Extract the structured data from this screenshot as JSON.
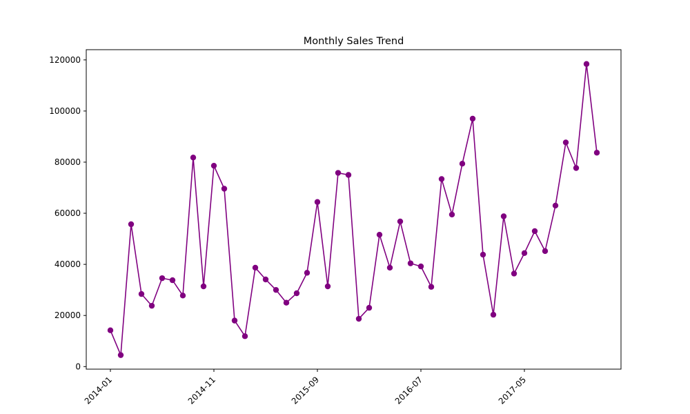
{
  "chart_data": {
    "type": "line",
    "title": "Monthly Sales Trend",
    "xlabel": "",
    "ylabel": "",
    "x_tick_labels": [
      "2014-01",
      "2014-11",
      "2015-09",
      "2016-07",
      "2017-05"
    ],
    "y_tick_labels": [
      "0",
      "20000",
      "40000",
      "60000",
      "80000",
      "100000",
      "120000"
    ],
    "ylim": [
      -1000,
      124000
    ],
    "grid": false,
    "colors": {
      "line": "#800080",
      "marker": "#800080",
      "axes": "#000000",
      "background": "#ffffff"
    },
    "x": [
      "2014-01",
      "2014-02",
      "2014-03",
      "2014-04",
      "2014-05",
      "2014-06",
      "2014-07",
      "2014-08",
      "2014-09",
      "2014-10",
      "2014-11",
      "2014-12",
      "2015-01",
      "2015-02",
      "2015-03",
      "2015-04",
      "2015-05",
      "2015-06",
      "2015-07",
      "2015-08",
      "2015-09",
      "2015-10",
      "2015-11",
      "2015-12",
      "2016-01",
      "2016-02",
      "2016-03",
      "2016-04",
      "2016-05",
      "2016-06",
      "2016-07",
      "2016-08",
      "2016-09",
      "2016-10",
      "2016-11",
      "2016-12",
      "2017-01",
      "2017-02",
      "2017-03",
      "2017-04",
      "2017-05",
      "2017-06",
      "2017-07",
      "2017-08",
      "2017-09",
      "2017-10",
      "2017-11",
      "2017-12"
    ],
    "series": [
      {
        "values": [
          14200,
          4500,
          55700,
          28400,
          23800,
          34600,
          33800,
          27800,
          81800,
          31400,
          78600,
          69600,
          18000,
          11900,
          38700,
          34100,
          30000,
          25000,
          28700,
          36700,
          64400,
          31400,
          75800,
          75000,
          18700,
          23000,
          51600,
          38700,
          56800,
          40400,
          39200,
          31200,
          73400,
          59500,
          79400,
          97000,
          43800,
          20300,
          58800,
          36400,
          44400,
          53000,
          45200,
          63000,
          87700,
          77700,
          118400,
          83700
        ]
      }
    ]
  }
}
